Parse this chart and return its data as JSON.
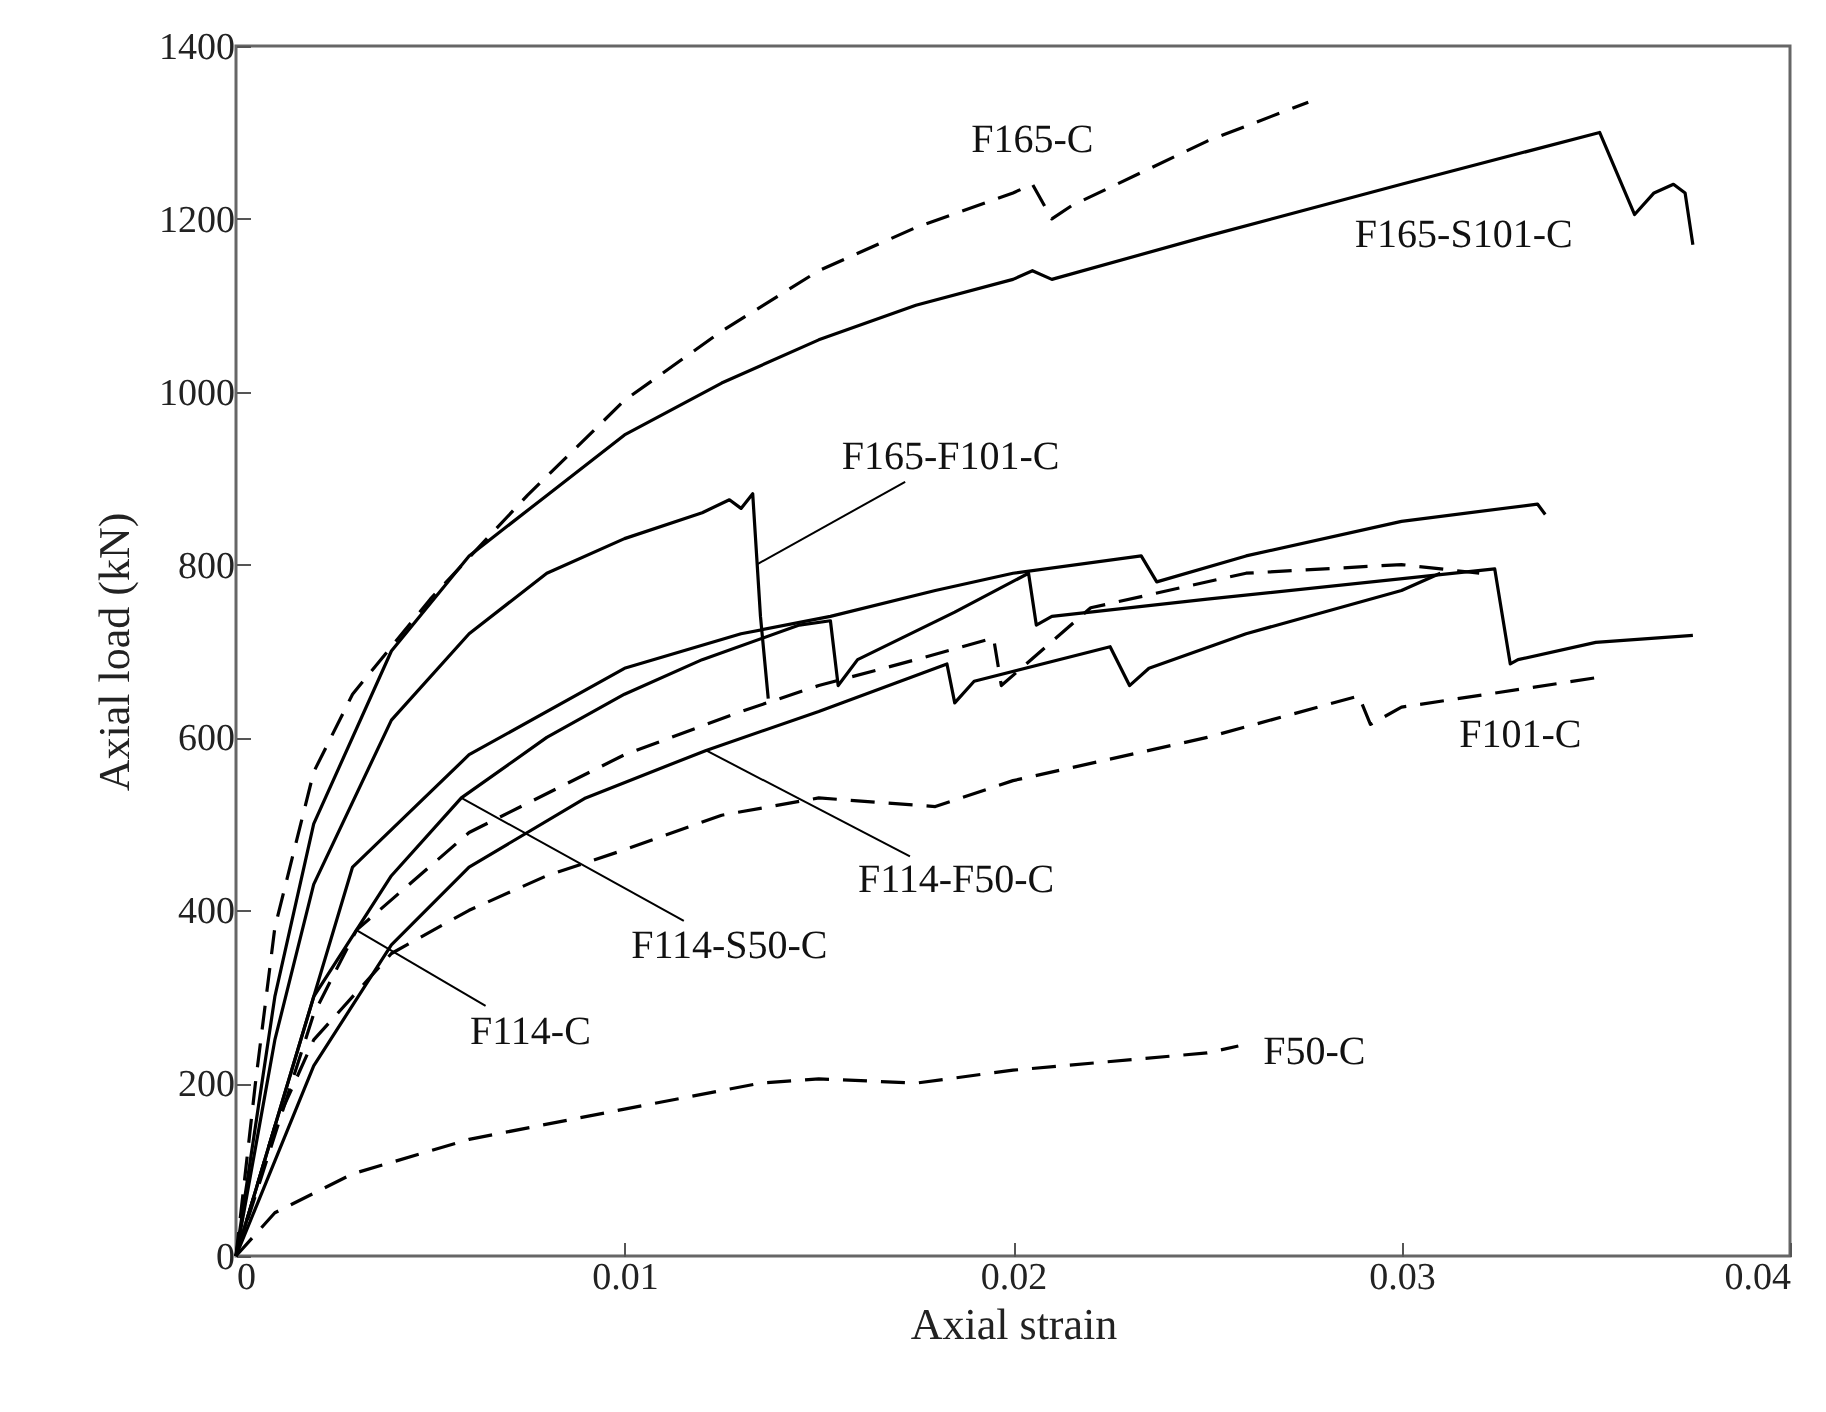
{
  "chart_data": {
    "type": "line",
    "xlabel": "Axial strain",
    "ylabel": "Axial load (kN)",
    "xlim": [
      0,
      0.04
    ],
    "ylim": [
      0,
      1400
    ],
    "xticks": [
      0,
      0.01,
      0.02,
      0.03,
      0.04
    ],
    "yticks": [
      0,
      200,
      400,
      600,
      800,
      1000,
      1200,
      1400
    ],
    "grid": false,
    "marker": "none",
    "series": [
      {
        "color": "#000000",
        "line_style": "dashed",
        "x": [
          0,
          0.0005,
          0.001,
          0.002,
          0.003,
          0.005,
          0.0075,
          0.01,
          0.0125,
          0.015,
          0.0175,
          0.02,
          0.0205,
          0.021,
          0.0215,
          0.025,
          0.0276
        ],
        "values": [
          0,
          200,
          380,
          560,
          650,
          760,
          880,
          990,
          1070,
          1140,
          1190,
          1230,
          1240,
          1200,
          1215,
          1290,
          1335
        ]
      },
      {
        "color": "#000000",
        "line_style": "solid",
        "x": [
          0,
          0.001,
          0.002,
          0.004,
          0.006,
          0.008,
          0.01,
          0.0125,
          0.015,
          0.0175,
          0.02,
          0.0205,
          0.021,
          0.025,
          0.03,
          0.0351,
          0.036,
          0.0365,
          0.037,
          0.0373,
          0.0375
        ],
        "values": [
          0,
          300,
          500,
          700,
          810,
          880,
          950,
          1010,
          1060,
          1100,
          1130,
          1140,
          1130,
          1180,
          1240,
          1300,
          1205,
          1230,
          1240,
          1230,
          1170
        ]
      },
      {
        "color": "#000000",
        "line_style": "solid",
        "x": [
          0,
          0.001,
          0.002,
          0.004,
          0.006,
          0.008,
          0.01,
          0.012,
          0.0127,
          0.013,
          0.0133,
          0.0135,
          0.0137
        ],
        "values": [
          0,
          250,
          430,
          620,
          720,
          790,
          830,
          860,
          875,
          865,
          882,
          740,
          645
        ]
      },
      {
        "color": "#000000",
        "line_style": "solid",
        "x": [
          0,
          0.002,
          0.004,
          0.0058,
          0.008,
          0.01,
          0.012,
          0.0145,
          0.0153,
          0.0155,
          0.016,
          0.0185,
          0.0204,
          0.0206,
          0.021,
          0.025,
          0.0324,
          0.0328,
          0.033,
          0.035,
          0.0375
        ],
        "values": [
          0,
          300,
          440,
          530,
          600,
          650,
          690,
          730,
          735,
          660,
          690,
          745,
          790,
          730,
          740,
          760,
          795,
          685,
          690,
          710,
          718
        ]
      },
      {
        "color": "#000000",
        "line_style": "solid",
        "x": [
          0,
          0.003,
          0.006,
          0.01,
          0.013,
          0.0153,
          0.018,
          0.02,
          0.0233,
          0.0237,
          0.026,
          0.03,
          0.0335,
          0.0337
        ],
        "values": [
          0,
          450,
          580,
          680,
          720,
          740,
          770,
          790,
          810,
          780,
          810,
          850,
          870,
          858
        ]
      },
      {
        "color": "#000000",
        "line_style": "solid",
        "x": [
          0,
          0.002,
          0.004,
          0.006,
          0.009,
          0.0121,
          0.015,
          0.0183,
          0.0185,
          0.019,
          0.0225,
          0.023,
          0.0235,
          0.026,
          0.03,
          0.031
        ],
        "values": [
          0,
          220,
          360,
          450,
          530,
          585,
          630,
          685,
          640,
          665,
          705,
          660,
          680,
          720,
          770,
          790
        ]
      },
      {
        "color": "#000000",
        "line_style": "dashed",
        "x": [
          0,
          0.002,
          0.0031,
          0.006,
          0.01,
          0.013,
          0.015,
          0.0175,
          0.0195,
          0.0197,
          0.022,
          0.026,
          0.03,
          0.032
        ],
        "values": [
          0,
          280,
          377,
          490,
          580,
          630,
          660,
          690,
          715,
          660,
          750,
          790,
          800,
          790
        ]
      },
      {
        "color": "#000000",
        "line_style": "dashed",
        "x": [
          0,
          0.001,
          0.002,
          0.004,
          0.006,
          0.008,
          0.01,
          0.0125,
          0.015,
          0.018,
          0.02,
          0.025,
          0.0289,
          0.0292,
          0.03,
          0.035
        ],
        "values": [
          0,
          150,
          250,
          350,
          400,
          440,
          470,
          510,
          530,
          520,
          550,
          600,
          648,
          615,
          635,
          669
        ]
      },
      {
        "color": "#000000",
        "line_style": "dashed",
        "x": [
          0,
          0.001,
          0.003,
          0.006,
          0.01,
          0.0135,
          0.015,
          0.0175,
          0.02,
          0.025,
          0.0258
        ],
        "values": [
          0,
          50,
          95,
          135,
          170,
          200,
          205,
          200,
          215,
          235,
          243
        ]
      }
    ],
    "annotations": [
      {
        "text": "F165-C",
        "x": 0.0205,
        "y": 1240
      },
      {
        "text": "F165-S101-C",
        "x": 0.035,
        "y": 1290
      },
      {
        "text": "F165-F101-C",
        "x": 0.0134,
        "y": 800
      },
      {
        "text": "F101-C",
        "x": 0.0345,
        "y": 665
      },
      {
        "text": "F114-F50-C",
        "x": 0.0121,
        "y": 585
      },
      {
        "text": "F114-S50-C",
        "x": 0.0058,
        "y": 530
      },
      {
        "text": "F114-C",
        "x": 0.0031,
        "y": 377
      },
      {
        "text": "F50-C",
        "x": 0.0258,
        "y": 243
      }
    ]
  }
}
